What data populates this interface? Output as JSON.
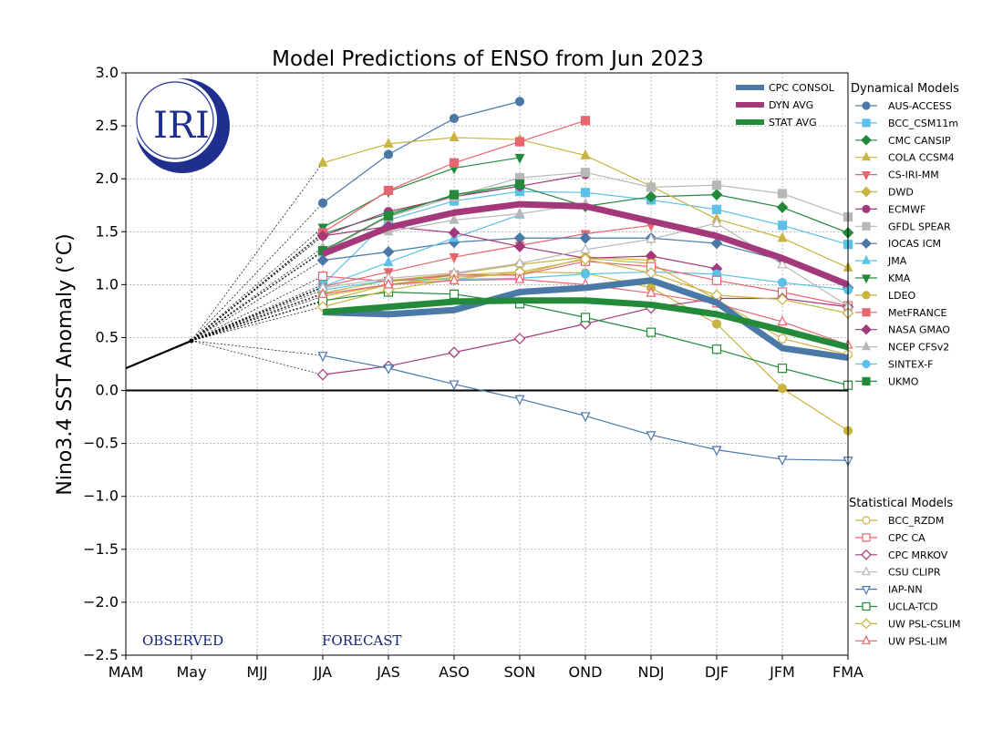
{
  "chart_data": {
    "type": "line",
    "title": "Model Predictions of ENSO from Jun 2023",
    "ylabel": "Nino3.4 SST Anomaly (°C)",
    "xlabel": "",
    "ylim": [
      -2.5,
      3.0
    ],
    "yticks": [
      -2.5,
      -2.0,
      -1.5,
      -1.0,
      -0.5,
      0.0,
      0.5,
      1.0,
      1.5,
      2.0,
      2.5,
      3.0
    ],
    "categories": [
      "MAM",
      "May",
      "MJJ",
      "JJA",
      "JAS",
      "ASO",
      "SON",
      "OND",
      "NDJ",
      "DJF",
      "JFM",
      "FMA"
    ],
    "grid": true,
    "observed_label": "OBSERVED",
    "forecast_label": "FORECAST",
    "logo_text": "IRI",
    "observed": [
      0.21,
      0.47
    ],
    "consensus": [
      {
        "name": "CPC CONSOL",
        "color": "#4a79a8",
        "start": 3,
        "values": [
          0.74,
          0.72,
          0.76,
          0.93,
          0.97,
          1.04,
          0.83,
          0.4,
          0.31
        ]
      },
      {
        "name": "DYN AVG",
        "color": "#a3397a",
        "start": 3,
        "values": [
          1.29,
          1.54,
          1.68,
          1.76,
          1.74,
          1.6,
          1.46,
          1.25,
          1.0
        ]
      },
      {
        "name": "STAT AVG",
        "color": "#238a3a",
        "start": 3,
        "values": [
          0.74,
          0.79,
          0.84,
          0.85,
          0.85,
          0.81,
          0.72,
          0.57,
          0.41
        ]
      }
    ],
    "dynamical_title": "Dynamical Models",
    "statistical_title": "Statistical Models",
    "dynamical": [
      {
        "name": "AUS-ACCESS",
        "color": "#4a79a8",
        "marker": "circle",
        "fill": true,
        "start": 3,
        "values": [
          1.77,
          2.23,
          2.57,
          2.73
        ]
      },
      {
        "name": "BCC_CSM11m",
        "color": "#5bc1e8",
        "marker": "square",
        "fill": true,
        "start": 3,
        "values": [
          1.0,
          1.61,
          1.79,
          1.88,
          1.87,
          1.8,
          1.71,
          1.56,
          1.38
        ]
      },
      {
        "name": "CMC CANSIP",
        "color": "#238a3a",
        "marker": "diamond",
        "fill": true,
        "start": 3,
        "values": [
          1.48,
          1.67,
          1.84,
          1.93,
          1.74,
          1.83,
          1.85,
          1.73,
          1.49
        ]
      },
      {
        "name": "COLA CCSM4",
        "color": "#c9b441",
        "marker": "triangle-up",
        "fill": true,
        "start": 3,
        "values": [
          2.15,
          2.33,
          2.39,
          2.37,
          2.22,
          1.93,
          1.62,
          1.44,
          1.16
        ]
      },
      {
        "name": "CS-IRI-MM",
        "color": "#e8646e",
        "marker": "triangle-down",
        "fill": true,
        "start": 3,
        "values": [
          0.98,
          1.12,
          1.26,
          1.37,
          1.48,
          1.56
        ]
      },
      {
        "name": "DWD",
        "color": "#c9b441",
        "marker": "diamond",
        "fill": true,
        "start": 3,
        "values": [
          0.92,
          1.04,
          1.1,
          1.19,
          1.26,
          1.23
        ]
      },
      {
        "name": "ECMWF",
        "color": "#a3397a",
        "marker": "circle",
        "fill": true,
        "start": 3,
        "values": [
          1.46,
          1.69,
          1.83,
          1.93,
          2.04
        ]
      },
      {
        "name": "GFDL SPEAR",
        "color": "#b8b8b8",
        "marker": "square",
        "fill": true,
        "start": 3,
        "values": [
          1.31,
          1.64,
          1.83,
          2.01,
          2.06,
          1.92,
          1.94,
          1.86,
          1.64
        ]
      },
      {
        "name": "IOCAS ICM",
        "color": "#4a79a8",
        "marker": "diamond",
        "fill": true,
        "start": 3,
        "values": [
          1.23,
          1.31,
          1.4,
          1.44,
          1.44,
          1.44,
          1.39,
          1.23,
          0.97
        ]
      },
      {
        "name": "JMA",
        "color": "#5bc1e8",
        "marker": "triangle-up",
        "fill": true,
        "start": 3,
        "values": [
          0.98,
          1.21,
          1.44,
          1.66
        ]
      },
      {
        "name": "KMA",
        "color": "#238a3a",
        "marker": "triangle-down",
        "fill": true,
        "start": 3,
        "values": [
          1.54,
          1.88,
          2.1,
          2.2
        ]
      },
      {
        "name": "LDEO",
        "color": "#c9b441",
        "marker": "circle",
        "fill": true,
        "start": 3,
        "values": [
          0.89,
          1.0,
          1.09,
          1.12,
          1.11,
          0.97,
          0.63,
          0.02,
          -0.38
        ]
      },
      {
        "name": "MetFRANCE",
        "color": "#e8646e",
        "marker": "square",
        "fill": true,
        "start": 3,
        "values": [
          1.49,
          1.89,
          2.15,
          2.35,
          2.55
        ]
      },
      {
        "name": "NASA GMAO",
        "color": "#a3397a",
        "marker": "diamond",
        "fill": true,
        "start": 3,
        "values": [
          1.46,
          1.55,
          1.49,
          1.36,
          1.25,
          1.27,
          1.15
        ]
      },
      {
        "name": "NCEP CFSv2",
        "color": "#b8b8b8",
        "marker": "triangle-up",
        "fill": true,
        "start": 3,
        "values": [
          1.35,
          1.5,
          1.61,
          1.67,
          1.76
        ]
      },
      {
        "name": "SINTEX-F",
        "color": "#5bc1e8",
        "marker": "circle",
        "fill": true,
        "start": 3,
        "values": [
          0.95,
          1.04,
          1.05,
          1.06,
          1.1,
          1.12,
          1.1,
          1.02,
          0.95
        ]
      },
      {
        "name": "UKMO",
        "color": "#238a3a",
        "marker": "square",
        "fill": true,
        "start": 3,
        "values": [
          1.32,
          1.65,
          1.85,
          1.95
        ]
      }
    ],
    "statistical": [
      {
        "name": "BCC_RZDM",
        "color": "#c9b441",
        "marker": "circle",
        "fill": false,
        "start": 3,
        "values": [
          0.84,
          1.0,
          1.07,
          1.1,
          1.25,
          1.2,
          0.86,
          0.49,
          0.34
        ]
      },
      {
        "name": "CPC CA",
        "color": "#e8646e",
        "marker": "square",
        "fill": false,
        "start": 3,
        "values": [
          1.08,
          1.03,
          1.09,
          1.09,
          1.22,
          1.17,
          1.04,
          0.93,
          0.8
        ]
      },
      {
        "name": "CPC MRKOV",
        "color": "#a3397a",
        "marker": "diamond",
        "fill": false,
        "start": 3,
        "values": [
          0.15,
          0.23,
          0.36,
          0.49,
          0.63,
          0.78,
          0.87,
          0.87,
          0.79
        ]
      },
      {
        "name": "CSU CLIPR",
        "color": "#b8b8b8",
        "marker": "triangle-up",
        "fill": false,
        "start": 3,
        "values": [
          0.97,
          1.06,
          1.11,
          1.2,
          1.33,
          1.43,
          1.58,
          1.19,
          0.8
        ]
      },
      {
        "name": "IAP-NN",
        "color": "#4a79a8",
        "marker": "triangle-down",
        "fill": false,
        "start": 3,
        "values": [
          0.33,
          0.21,
          0.06,
          -0.08,
          -0.24,
          -0.42,
          -0.56,
          -0.65,
          -0.66
        ]
      },
      {
        "name": "UCLA-TCD",
        "color": "#238a3a",
        "marker": "square",
        "fill": false,
        "start": 3,
        "values": [
          0.85,
          0.93,
          0.91,
          0.82,
          0.69,
          0.55,
          0.39,
          0.21,
          0.05
        ]
      },
      {
        "name": "UW PSL-CSLIM",
        "color": "#c9b441",
        "marker": "diamond",
        "fill": false,
        "start": 3,
        "values": [
          0.79,
          0.95,
          1.05,
          1.12,
          1.24,
          1.11,
          0.9,
          0.86,
          0.73
        ]
      },
      {
        "name": "UW PSL-LIM",
        "color": "#e8646e",
        "marker": "triangle-up",
        "fill": false,
        "start": 3,
        "values": [
          0.91,
          1.0,
          1.04,
          1.05,
          1.0,
          0.92,
          0.82,
          0.65,
          0.43
        ]
      }
    ]
  }
}
